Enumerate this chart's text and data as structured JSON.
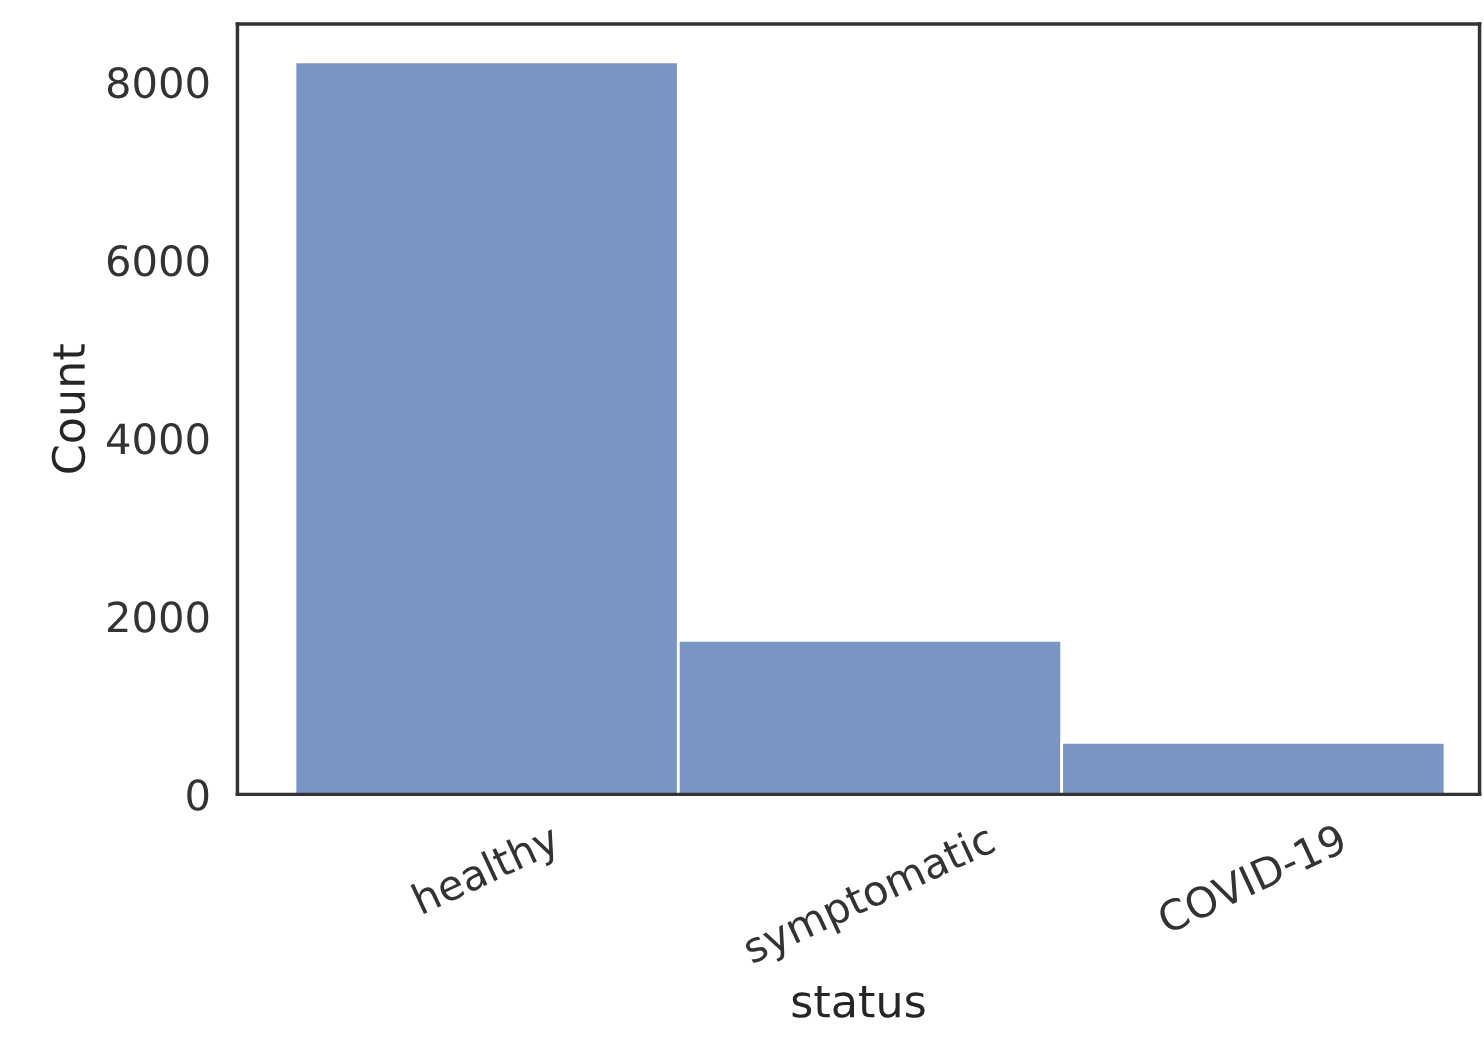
{
  "chart_data": {
    "type": "bar",
    "xlabel": "status",
    "ylabel": "Count",
    "categories": [
      "healthy",
      "symptomatic",
      "COVID-19"
    ],
    "values": [
      8225,
      1730,
      584
    ],
    "color": "#7995c4",
    "ylim": [
      0,
      8650
    ],
    "yticks": [
      0,
      2000,
      4000,
      6000,
      8000
    ],
    "grid": false
  }
}
